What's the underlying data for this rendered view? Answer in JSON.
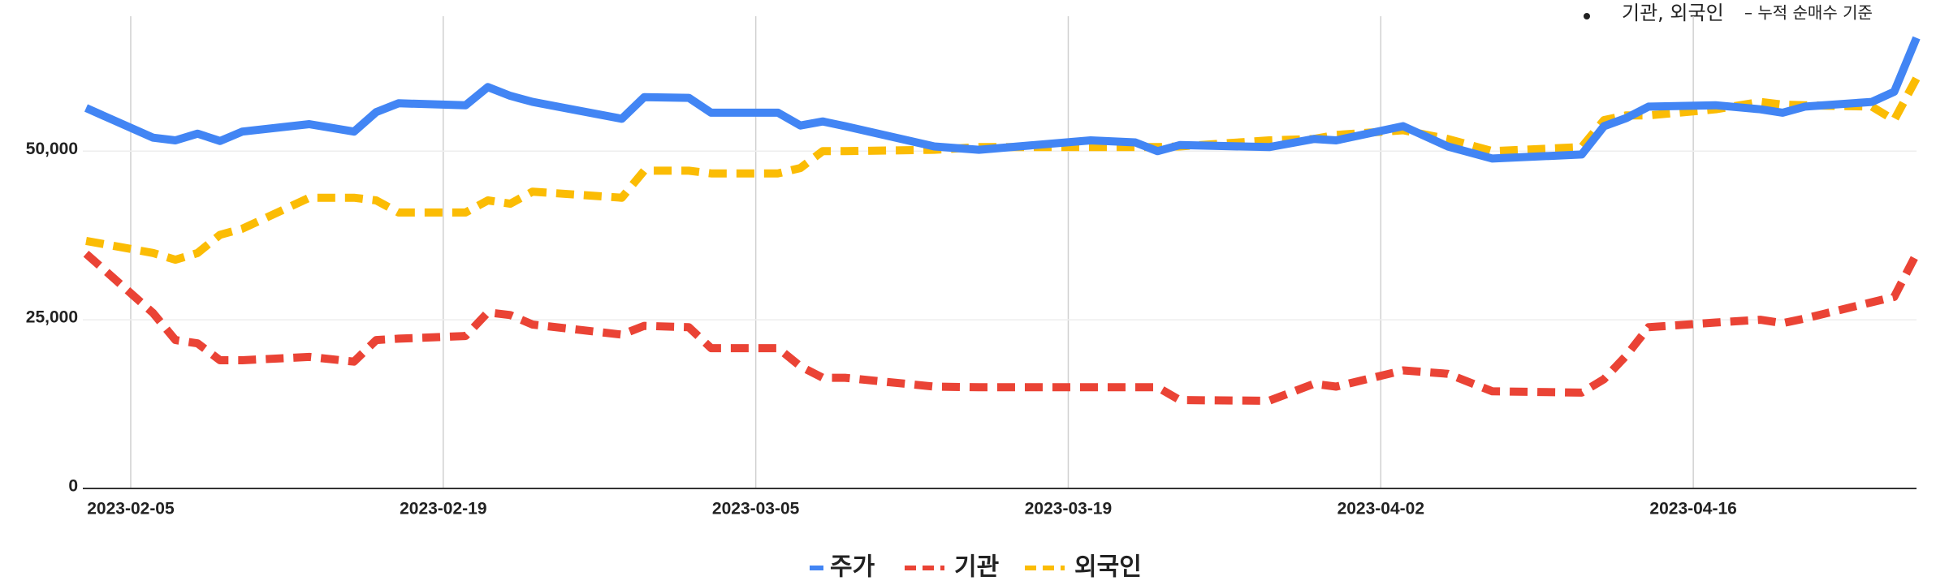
{
  "chart_data": {
    "type": "line",
    "annotation": {
      "bold": "기관, 외국인",
      "text": "– 누적 순매수 기준"
    },
    "x": [
      "2023-02-03",
      "2023-02-06",
      "2023-02-07",
      "2023-02-08",
      "2023-02-09",
      "2023-02-10",
      "2023-02-13",
      "2023-02-15",
      "2023-02-16",
      "2023-02-17",
      "2023-02-20",
      "2023-02-21",
      "2023-02-22",
      "2023-02-23",
      "2023-02-27",
      "2023-02-28",
      "2023-03-02",
      "2023-03-03",
      "2023-03-06",
      "2023-03-07",
      "2023-03-08",
      "2023-03-09",
      "2023-03-13",
      "2023-03-15",
      "2023-03-20",
      "2023-03-22",
      "2023-03-23",
      "2023-03-24",
      "2023-03-28",
      "2023-03-30",
      "2023-03-31",
      "2023-04-03",
      "2023-04-05",
      "2023-04-07",
      "2023-04-11",
      "2023-04-12",
      "2023-04-13",
      "2023-04-14",
      "2023-04-17",
      "2023-04-19",
      "2023-04-20",
      "2023-04-21",
      "2023-04-24",
      "2023-04-25",
      "2023-04-26"
    ],
    "series": [
      {
        "name": "주가",
        "color": "#4285f4",
        "dashed": false,
        "values": [
          56400,
          52000,
          51600,
          52600,
          51500,
          52900,
          54000,
          52900,
          55800,
          57100,
          56800,
          59500,
          58200,
          57300,
          54800,
          58000,
          57900,
          55700,
          55700,
          53800,
          54400,
          53700,
          50700,
          50200,
          51600,
          51300,
          50000,
          50900,
          50600,
          51800,
          51600,
          53700,
          50700,
          48900,
          49500,
          53700,
          54900,
          56600,
          56800,
          56200,
          55700,
          56600,
          57300,
          58800,
          66800
        ]
      },
      {
        "name": "기관",
        "color": "#ea4335",
        "dashed": true,
        "values": [
          34800,
          26000,
          22000,
          21500,
          19000,
          19000,
          19500,
          18800,
          22000,
          22200,
          22600,
          26100,
          25700,
          24300,
          22800,
          24100,
          23900,
          20800,
          20800,
          18100,
          16400,
          16400,
          15100,
          15000,
          15000,
          15000,
          15000,
          13100,
          13000,
          15500,
          15100,
          17500,
          17000,
          14400,
          14200,
          16200,
          19700,
          23900,
          24600,
          25000,
          24500,
          25200,
          27600,
          28400,
          34800
        ]
      },
      {
        "name": "외국인",
        "color": "#fbbc04",
        "dashed": true,
        "values": [
          36700,
          34900,
          33900,
          34900,
          37600,
          38500,
          43100,
          43100,
          42700,
          40900,
          40900,
          42700,
          42200,
          44000,
          43100,
          47100,
          47100,
          46700,
          46700,
          47500,
          50000,
          50000,
          50200,
          50600,
          50600,
          50600,
          50600,
          50700,
          51600,
          51800,
          52400,
          53100,
          51800,
          50000,
          50600,
          54600,
          55300,
          55300,
          56200,
          57300,
          56900,
          56800,
          56600,
          54600,
          60800
        ]
      }
    ],
    "xlim": [
      "2023-02-03",
      "2023-04-26"
    ],
    "xticks": [
      "2023-02-05",
      "2023-02-19",
      "2023-03-05",
      "2023-03-19",
      "2023-04-02",
      "2023-04-16"
    ],
    "ylim": [
      0,
      70000
    ],
    "yticks": [
      0,
      {
        "value": 25000,
        "label": "25,000"
      },
      {
        "value": 50000,
        "label": "50,000"
      }
    ],
    "grid": true,
    "legend": "bottom"
  }
}
